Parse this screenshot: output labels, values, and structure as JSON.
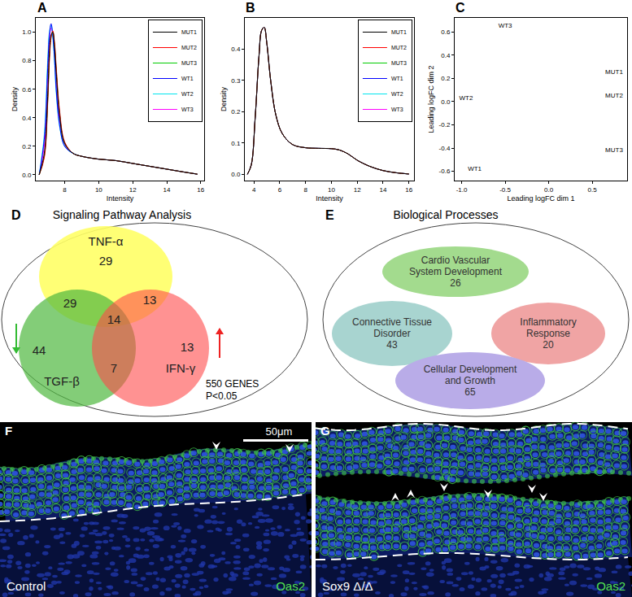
{
  "chart_data": [
    {
      "panel_label": "A",
      "type": "line",
      "xlabel": "Intensity",
      "ylabel": "Density",
      "x": [
        6.5,
        6.8,
        7.0,
        7.1,
        7.2,
        7.3,
        7.4,
        7.5,
        7.7,
        8.0,
        8.5,
        9,
        10,
        11,
        12,
        13,
        14,
        15,
        15.8
      ],
      "series": [
        {
          "name": "MUT1",
          "color": "#000000",
          "values": [
            0,
            0.15,
            0.55,
            0.85,
            0.98,
            1.0,
            0.9,
            0.72,
            0.42,
            0.22,
            0.15,
            0.13,
            0.11,
            0.1,
            0.08,
            0.06,
            0.04,
            0.02,
            0.005
          ]
        },
        {
          "name": "MUT2",
          "color": "#ff0000",
          "values": [
            0,
            0.12,
            0.5,
            0.8,
            0.96,
            1.01,
            0.93,
            0.76,
            0.45,
            0.23,
            0.15,
            0.13,
            0.11,
            0.1,
            0.08,
            0.06,
            0.04,
            0.02,
            0.005
          ]
        },
        {
          "name": "MUT3",
          "color": "#00cd00",
          "values": [
            0,
            0.13,
            0.52,
            0.82,
            0.97,
            1.0,
            0.91,
            0.74,
            0.43,
            0.22,
            0.15,
            0.13,
            0.11,
            0.1,
            0.08,
            0.06,
            0.04,
            0.02,
            0.005
          ]
        },
        {
          "name": "WT1",
          "color": "#0000ff",
          "values": [
            0,
            0.25,
            0.75,
            0.98,
            1.06,
            0.98,
            0.82,
            0.6,
            0.35,
            0.2,
            0.15,
            0.13,
            0.11,
            0.1,
            0.08,
            0.06,
            0.04,
            0.02,
            0.005
          ]
        },
        {
          "name": "WT2",
          "color": "#00e5ee",
          "values": [
            0,
            0.28,
            0.8,
            1.0,
            1.05,
            0.96,
            0.8,
            0.58,
            0.34,
            0.2,
            0.15,
            0.13,
            0.11,
            0.1,
            0.08,
            0.06,
            0.04,
            0.02,
            0.005
          ]
        },
        {
          "name": "WT3",
          "color": "#ff00ff",
          "values": [
            0,
            0.2,
            0.68,
            0.94,
            1.03,
            0.99,
            0.85,
            0.65,
            0.38,
            0.21,
            0.15,
            0.13,
            0.11,
            0.1,
            0.08,
            0.06,
            0.04,
            0.02,
            0.005
          ]
        }
      ],
      "xlim": [
        6.3,
        16.2
      ],
      "xticks": [
        8,
        10,
        12,
        14,
        16
      ],
      "ylim": [
        -0.04,
        1.1
      ],
      "yticks": [
        {
          "value": 0,
          "label": "0.0"
        },
        0.2,
        0.4,
        0.6,
        0.8,
        {
          "value": 1,
          "label": "1.0"
        }
      ],
      "grid": false,
      "legend": "upper right"
    },
    {
      "panel_label": "B",
      "type": "line",
      "xlabel": "Intensity",
      "ylabel": "Density",
      "x": [
        3.5,
        3.8,
        4.1,
        4.4,
        4.6,
        4.8,
        5.0,
        5.3,
        5.7,
        6.2,
        7,
        8,
        9,
        10,
        10.6,
        11.3,
        12,
        13,
        14,
        15,
        16
      ],
      "series": [
        {
          "name": "MUT1",
          "color": "#000000",
          "values": [
            0,
            0.03,
            0.18,
            0.38,
            0.46,
            0.47,
            0.42,
            0.3,
            0.19,
            0.13,
            0.095,
            0.085,
            0.083,
            0.082,
            0.078,
            0.065,
            0.045,
            0.025,
            0.012,
            0.005,
            0.001
          ]
        },
        {
          "name": "MUT2",
          "color": "#ff0000",
          "values": [
            0,
            0.03,
            0.18,
            0.38,
            0.46,
            0.47,
            0.42,
            0.3,
            0.19,
            0.13,
            0.095,
            0.085,
            0.083,
            0.082,
            0.078,
            0.065,
            0.045,
            0.025,
            0.012,
            0.005,
            0.001
          ]
        },
        {
          "name": "MUT3",
          "color": "#00cd00",
          "values": [
            0,
            0.03,
            0.18,
            0.38,
            0.46,
            0.47,
            0.42,
            0.3,
            0.19,
            0.13,
            0.095,
            0.085,
            0.083,
            0.082,
            0.078,
            0.065,
            0.045,
            0.025,
            0.012,
            0.005,
            0.001
          ]
        },
        {
          "name": "WT1",
          "color": "#0000ff",
          "values": [
            0,
            0.03,
            0.18,
            0.38,
            0.46,
            0.47,
            0.42,
            0.3,
            0.19,
            0.13,
            0.095,
            0.085,
            0.083,
            0.082,
            0.078,
            0.065,
            0.045,
            0.025,
            0.012,
            0.005,
            0.001
          ]
        },
        {
          "name": "WT2",
          "color": "#00e5ee",
          "values": [
            0,
            0.03,
            0.18,
            0.38,
            0.46,
            0.47,
            0.42,
            0.3,
            0.19,
            0.13,
            0.095,
            0.085,
            0.083,
            0.082,
            0.078,
            0.065,
            0.045,
            0.025,
            0.012,
            0.005,
            0.001
          ]
        },
        {
          "name": "WT3",
          "color": "#ff00ff",
          "values": [
            0,
            0.03,
            0.18,
            0.38,
            0.46,
            0.47,
            0.42,
            0.3,
            0.19,
            0.13,
            0.095,
            0.085,
            0.083,
            0.082,
            0.078,
            0.065,
            0.045,
            0.025,
            0.012,
            0.005,
            0.001
          ]
        }
      ],
      "xlim": [
        3.3,
        16.4
      ],
      "xticks": [
        4,
        6,
        8,
        10,
        12,
        14,
        16
      ],
      "ylim": [
        -0.02,
        0.5
      ],
      "yticks": [
        {
          "value": 0,
          "label": "0.0"
        },
        0.1,
        0.2,
        0.3,
        0.4
      ],
      "grid": false,
      "legend": "upper right"
    },
    {
      "panel_label": "C",
      "type": "scatter",
      "marker": "text",
      "xlabel": "Leading logFC dim 1",
      "ylabel": "Leading logFC dim 2",
      "x": [
        -0.5,
        0.75,
        0.75,
        -0.95,
        0.75,
        -0.85
      ],
      "values": [
        0.65,
        0.25,
        0.05,
        0.03,
        -0.42,
        -0.58
      ],
      "point_labels": [
        "WT3",
        "MUT1",
        "MUT2",
        "WT2",
        "MUT3",
        "WT1"
      ],
      "xlim": [
        -1.08,
        0.9
      ],
      "xticks": [
        {
          "value": -1,
          "label": "-1.0"
        },
        -0.5,
        {
          "value": 0,
          "label": "0.0"
        },
        0.5
      ],
      "ylim": [
        -0.68,
        0.72
      ],
      "yticks": [
        -0.6,
        -0.4,
        -0.2,
        {
          "value": 0,
          "label": "0.0"
        },
        0.2,
        0.4,
        0.6
      ],
      "grid": false
    }
  ],
  "panels": {
    "D": {
      "panel_label": "D",
      "title": "Signaling Pathway Analysis",
      "sets": [
        {
          "name": "TNF-α",
          "color": "#ffff66"
        },
        {
          "name": "TGF-β",
          "color": "#4fb83f"
        },
        {
          "name": "IFN-γ",
          "color": "#ff4a4a"
        }
      ],
      "regions": [
        {
          "sets": [
            "TNF-α"
          ],
          "value": 29
        },
        {
          "sets": [
            "TGF-β"
          ],
          "value": 44
        },
        {
          "sets": [
            "IFN-γ"
          ],
          "value": 13
        },
        {
          "sets": [
            "TNF-α",
            "TGF-β"
          ],
          "value": 29
        },
        {
          "sets": [
            "TNF-α",
            "IFN-γ"
          ],
          "value": 13
        },
        {
          "sets": [
            "TGF-β",
            "IFN-γ"
          ],
          "value": 7
        },
        {
          "sets": [
            "TNF-α",
            "TGF-β",
            "IFN-γ"
          ],
          "value": 14
        }
      ],
      "arrows": [
        {
          "set": "TGF-β",
          "direction": "down",
          "color": "#33bb33"
        },
        {
          "set": "IFN-γ",
          "direction": "up",
          "color": "#ee2222"
        }
      ],
      "footer": [
        "550 GENES",
        "P<0.05"
      ]
    },
    "E": {
      "panel_label": "E",
      "title": "Biological Processes",
      "items": [
        {
          "lines": [
            "Cardio Vascular",
            "System Development"
          ],
          "value": 26,
          "color": "#a3db8e"
        },
        {
          "lines": [
            "Connective Tissue",
            "Disorder"
          ],
          "value": 43,
          "color": "#a8d4d0"
        },
        {
          "lines": [
            "Inflammatory",
            "Response"
          ],
          "value": 20,
          "color": "#f0a4a4"
        },
        {
          "lines": [
            "Cellular Development",
            "and Growth"
          ],
          "value": 65,
          "color": "#b9ace8"
        }
      ]
    },
    "F": {
      "panel_label": "F",
      "condition": "Control",
      "stain": "Oas2",
      "scale_bar": "50μm"
    },
    "G": {
      "panel_label": "G",
      "condition": "Sox9 Δ/Δ",
      "stain": "Oas2"
    }
  }
}
